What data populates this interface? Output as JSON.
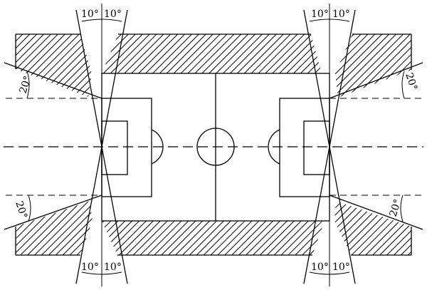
{
  "diagram": {
    "angle_labels": {
      "top_left_a": "10°",
      "top_left_b": "10°",
      "top_right_a": "10°",
      "top_right_b": "10°",
      "bottom_left_a": "10°",
      "bottom_left_b": "10°",
      "bottom_right_a": "10°",
      "bottom_right_b": "10°",
      "upper_left": "20°",
      "upper_right": "20°",
      "lower_left": "20°",
      "lower_right": "20°"
    }
  }
}
